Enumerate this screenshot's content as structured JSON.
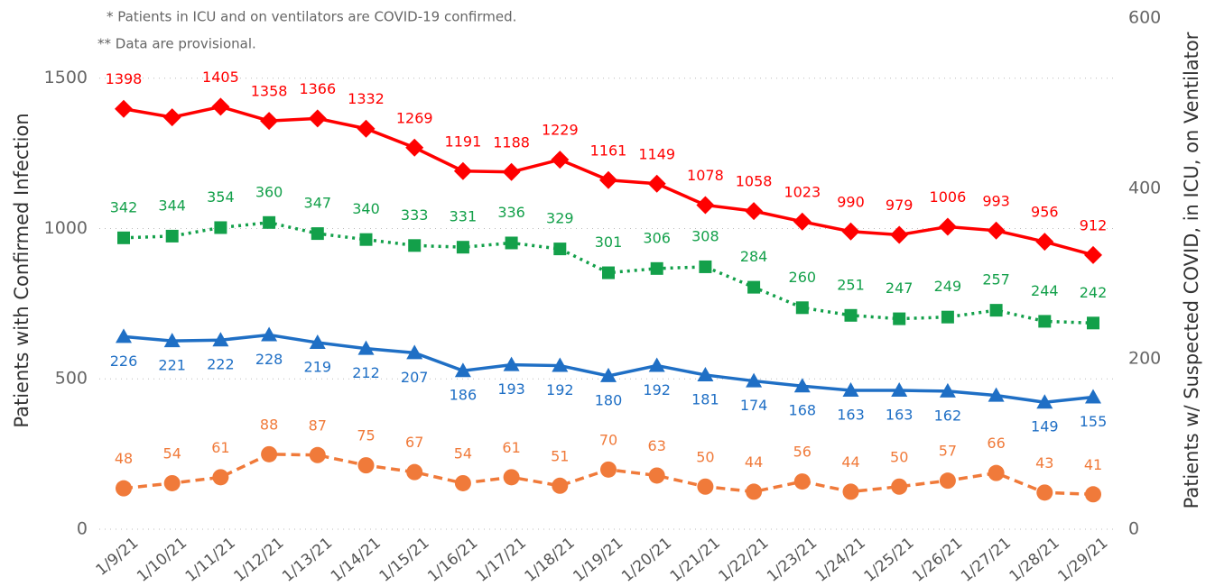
{
  "chart_data": {
    "type": "line",
    "notes": [
      "* Patients in ICU and on ventilators are COVID-19 confirmed.",
      "** Data are provisional."
    ],
    "ylabel": "Patients with Confirmed Infection",
    "y2label": "Patients w/ Suspected COVID, in ICU, on Ventilator",
    "x": [
      "1/9/21",
      "1/10/21",
      "1/11/21",
      "1/12/21",
      "1/13/21",
      "1/14/21",
      "1/15/21",
      "1/16/21",
      "1/17/21",
      "1/18/21",
      "1/19/21",
      "1/20/21",
      "1/21/21",
      "1/22/21",
      "1/23/21",
      "1/24/21",
      "1/25/21",
      "1/26/21",
      "1/27/21",
      "1/28/21",
      "1/29/21"
    ],
    "ylim": [
      0,
      1700
    ],
    "yticks": [
      0,
      500,
      1000,
      1500
    ],
    "y2lim": [
      0,
      600
    ],
    "y2ticks": [
      0,
      200,
      400,
      600
    ],
    "grid": true,
    "series": [
      {
        "color": "#ff0000",
        "marker": "diamond",
        "dash": "solid",
        "values": [
          1398,
          1370,
          1405,
          1358,
          1366,
          1332,
          1269,
          1191,
          1188,
          1229,
          1161,
          1149,
          1078,
          1058,
          1023,
          990,
          979,
          1006,
          993,
          956,
          912
        ],
        "value_labels": [
          "1398",
          null,
          "1405",
          "1358",
          "1366",
          "1332",
          "1269",
          "1191",
          "1188",
          "1229",
          "1161",
          "1149",
          "1078",
          "1058",
          "1023",
          "990",
          "979",
          "1006",
          "993",
          "956",
          "912"
        ]
      },
      {
        "color": "#13a04a",
        "marker": "square",
        "dash": "dotted",
        "axis": "y2",
        "values": [
          342,
          344,
          354,
          360,
          347,
          340,
          333,
          331,
          336,
          329,
          301,
          306,
          308,
          284,
          260,
          251,
          247,
          249,
          257,
          244,
          242
        ]
      },
      {
        "color": "#1f6fc5",
        "marker": "triangle",
        "dash": "solid",
        "axis": "y2",
        "values": [
          226,
          221,
          222,
          228,
          219,
          212,
          207,
          186,
          193,
          192,
          180,
          192,
          181,
          174,
          168,
          163,
          163,
          162,
          157,
          149,
          155
        ],
        "value_labels": [
          "226",
          "221",
          "222",
          "228",
          "219",
          "212",
          "207",
          "186",
          "193",
          "192",
          "180",
          "192",
          "181",
          "174",
          "168",
          "163",
          "163",
          "162",
          null,
          "149",
          "155"
        ]
      },
      {
        "color": "#f07a3a",
        "marker": "circle",
        "dash": "dashed",
        "axis": "y2",
        "values": [
          48,
          54,
          61,
          88,
          87,
          75,
          67,
          54,
          61,
          51,
          70,
          63,
          50,
          44,
          56,
          44,
          50,
          57,
          66,
          43,
          41
        ]
      }
    ]
  }
}
